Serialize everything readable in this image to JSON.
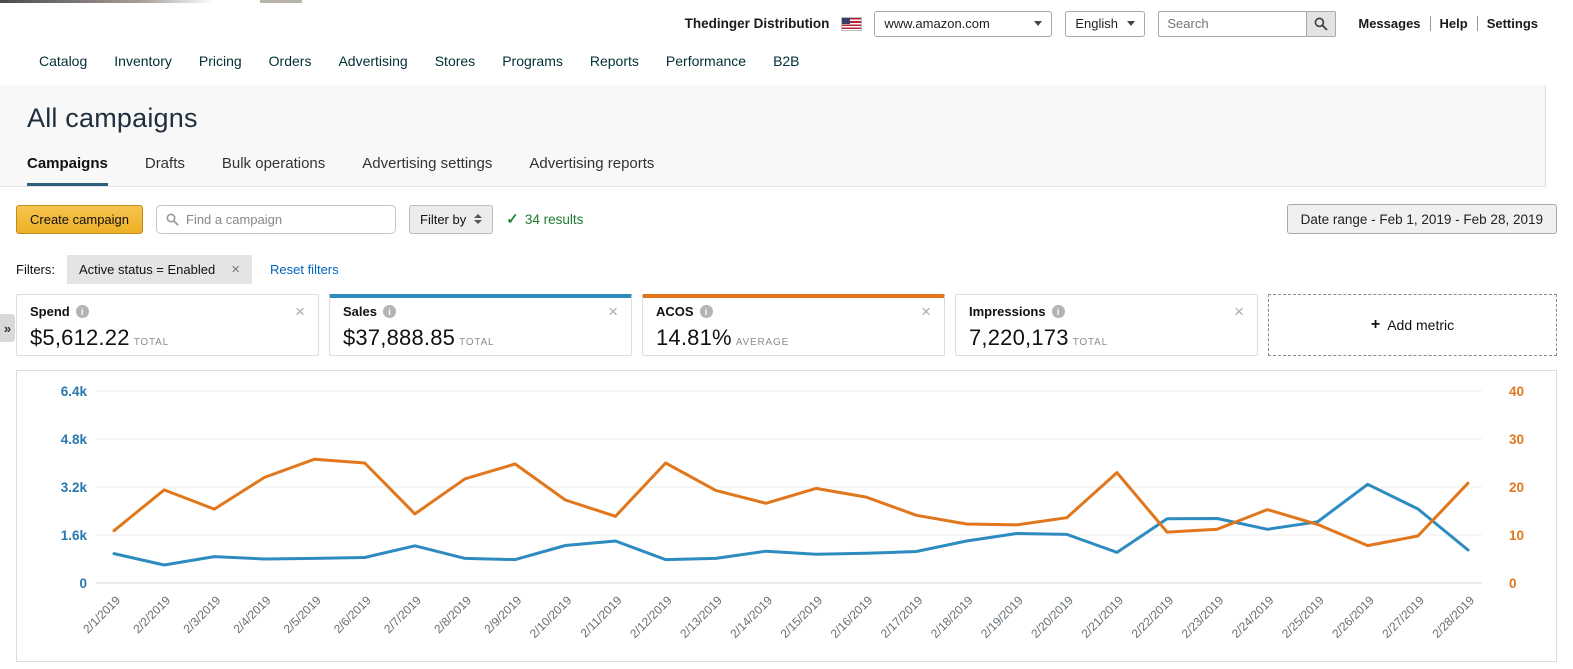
{
  "topbar": {
    "account": "Thedinger Distribution",
    "marketplace_value": "www.amazon.com",
    "language_value": "English",
    "search_placeholder": "Search",
    "links": [
      "Messages",
      "Help",
      "Settings"
    ]
  },
  "nav": {
    "items": [
      "Catalog",
      "Inventory",
      "Pricing",
      "Orders",
      "Advertising",
      "Stores",
      "Programs",
      "Reports",
      "Performance",
      "B2B"
    ]
  },
  "page": {
    "title": "All campaigns"
  },
  "tabs": [
    {
      "label": "Campaigns",
      "active": true
    },
    {
      "label": "Drafts",
      "active": false
    },
    {
      "label": "Bulk operations",
      "active": false
    },
    {
      "label": "Advertising settings",
      "active": false
    },
    {
      "label": "Advertising reports",
      "active": false
    }
  ],
  "toolbar": {
    "create_label": "Create campaign",
    "find_placeholder": "Find a campaign",
    "filter_label": "Filter by",
    "results_check": "✓",
    "results_text": "34 results",
    "date_range_label": "Date range - Feb 1, 2019 - Feb 28, 2019"
  },
  "filters": {
    "label": "Filters:",
    "chips": [
      {
        "label": "Active status = Enabled"
      }
    ],
    "reset_label": "Reset filters"
  },
  "metrics": [
    {
      "name": "Spend",
      "value": "$5,612.22",
      "qualifier": "TOTAL",
      "accent": null
    },
    {
      "name": "Sales",
      "value": "$37,888.85",
      "qualifier": "TOTAL",
      "accent": "#2e8bc0"
    },
    {
      "name": "ACOS",
      "value": "14.81%",
      "qualifier": "AVERAGE",
      "accent": "#e0771c"
    },
    {
      "name": "Impressions",
      "value": "7,220,173",
      "qualifier": "TOTAL",
      "accent": null
    }
  ],
  "add_metric": {
    "label": "Add metric"
  },
  "expander_glyph": "»",
  "chart_data": {
    "type": "line",
    "x": [
      "2/1/2019",
      "2/2/2019",
      "2/3/2019",
      "2/4/2019",
      "2/5/2019",
      "2/6/2019",
      "2/7/2019",
      "2/8/2019",
      "2/9/2019",
      "2/10/2019",
      "2/11/2019",
      "2/12/2019",
      "2/13/2019",
      "2/14/2019",
      "2/15/2019",
      "2/16/2019",
      "2/17/2019",
      "2/18/2019",
      "2/19/2019",
      "2/20/2019",
      "2/21/2019",
      "2/22/2019",
      "2/23/2019",
      "2/24/2019",
      "2/25/2019",
      "2/26/2019",
      "2/27/2019",
      "2/28/2019"
    ],
    "series": [
      {
        "name": "Sales",
        "axis": "left",
        "color": "#2e8bc0",
        "values": [
          980,
          600,
          880,
          800,
          820,
          850,
          1240,
          820,
          780,
          1250,
          1400,
          780,
          820,
          1060,
          960,
          990,
          1050,
          1400,
          1650,
          1620,
          1020,
          2140,
          2150,
          1790,
          2040,
          3290,
          2470,
          1100
        ]
      },
      {
        "name": "ACOS",
        "axis": "right",
        "color": "#e0771c",
        "values": [
          10.9,
          19.4,
          15.4,
          22,
          25.8,
          25,
          14.4,
          21.7,
          24.8,
          17.3,
          13.9,
          25,
          19.3,
          16.6,
          19.7,
          17.9,
          14.1,
          12.3,
          12.1,
          13.6,
          23,
          10.6,
          11.2,
          15.3,
          12.2,
          7.8,
          9.8,
          20.8
        ]
      }
    ],
    "left_axis": {
      "min": 0,
      "max": 6400,
      "ticks": [
        "6.4k",
        "4.8k",
        "3.2k",
        "1.6k",
        "0"
      ],
      "color": "#2878ae"
    },
    "right_axis": {
      "min": 0,
      "max": 40,
      "ticks": [
        "40",
        "30",
        "20",
        "10",
        "0"
      ],
      "color": "#e0771c"
    },
    "grid": true,
    "legend_position": "none",
    "xlabel": "",
    "ylabel": "",
    "title": ""
  }
}
